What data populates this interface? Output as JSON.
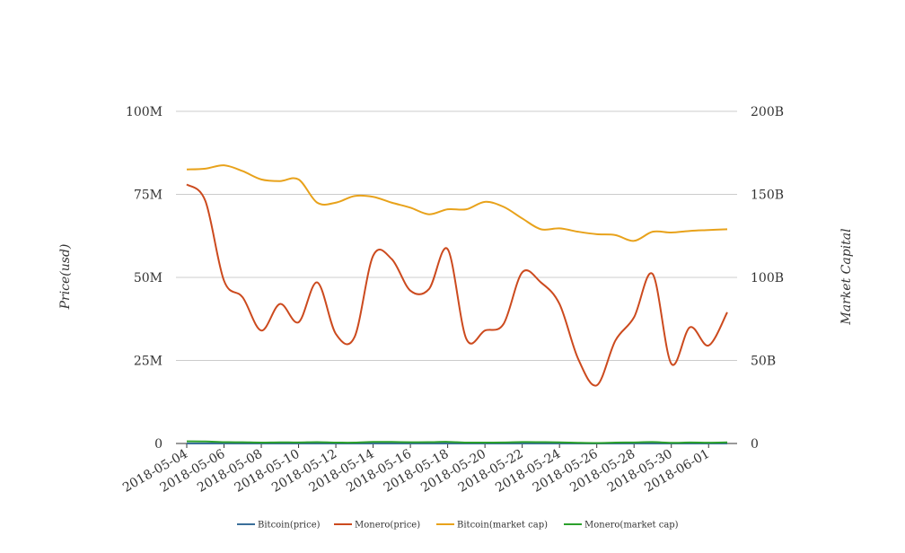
{
  "chart_data": {
    "type": "line",
    "title": "",
    "x": [
      "2018-05-04",
      "2018-05-05",
      "2018-05-06",
      "2018-05-07",
      "2018-05-08",
      "2018-05-09",
      "2018-05-10",
      "2018-05-11",
      "2018-05-12",
      "2018-05-13",
      "2018-05-14",
      "2018-05-15",
      "2018-05-16",
      "2018-05-17",
      "2018-05-18",
      "2018-05-19",
      "2018-05-20",
      "2018-05-21",
      "2018-05-22",
      "2018-05-23",
      "2018-05-24",
      "2018-05-25",
      "2018-05-26",
      "2018-05-27",
      "2018-05-28",
      "2018-05-29",
      "2018-05-30",
      "2018-05-31",
      "2018-06-01",
      "2018-06-02"
    ],
    "x_tick_labels": [
      "2018-05-04",
      "2018-05-06",
      "2018-05-08",
      "2018-05-10",
      "2018-05-12",
      "2018-05-14",
      "2018-05-16",
      "2018-05-18",
      "2018-05-20",
      "2018-05-22",
      "2018-05-24",
      "2018-05-26",
      "2018-05-28",
      "2018-05-30",
      "2018-06-01"
    ],
    "y_left": {
      "label": "Price(usd)",
      "ylim": [
        0,
        100000000
      ],
      "ticks": [
        0,
        25000000,
        50000000,
        75000000,
        100000000
      ],
      "tick_labels": [
        "0",
        "25M",
        "50M",
        "75M",
        "100M"
      ]
    },
    "y_right": {
      "label": "Market Capital",
      "ylim": [
        0,
        200000000000
      ],
      "ticks": [
        0,
        50000000000,
        100000000000,
        150000000000,
        200000000000
      ],
      "tick_labels": [
        "0",
        "50B",
        "100B",
        "150B",
        "200B"
      ]
    },
    "grid": true,
    "legend_position": "bottom",
    "series": [
      {
        "name": "Bitcoin(price)",
        "axis": "left",
        "color": "#3a6f9a",
        "values": [
          9700,
          9850,
          9650,
          9380,
          9200,
          9300,
          9030,
          8450,
          8500,
          8720,
          8680,
          8500,
          8360,
          8100,
          8250,
          8230,
          8530,
          8400,
          8000,
          7600,
          7500,
          7360,
          7350,
          7350,
          7100,
          7500,
          7400,
          7500,
          7540,
          7640
        ]
      },
      {
        "name": "Monero(price)",
        "axis": "left",
        "color": "#cc4a1e",
        "values": [
          78000000,
          73000000,
          49000000,
          44000000,
          34000000,
          42000000,
          36500000,
          48500000,
          33000000,
          32000000,
          56500000,
          55500000,
          46000000,
          46500000,
          58500000,
          31500000,
          34000000,
          36000000,
          51500000,
          48500000,
          42000000,
          25500000,
          17500000,
          31000000,
          38000000,
          51000000,
          24000000,
          35000000,
          29500000,
          39500000
        ]
      },
      {
        "name": "Bitcoin(market cap)",
        "axis": "right",
        "color": "#e8a21b",
        "values": [
          165000000000,
          165500000000,
          167500000000,
          164000000000,
          159000000000,
          158000000000,
          159000000000,
          145000000000,
          145000000000,
          149000000000,
          148500000000,
          145000000000,
          142000000000,
          138000000000,
          141000000000,
          141000000000,
          145500000000,
          142500000000,
          135500000000,
          129000000000,
          129500000000,
          127500000000,
          126000000000,
          125500000000,
          122000000000,
          127500000000,
          127000000000,
          128000000000,
          128500000000,
          129000000000
        ]
      },
      {
        "name": "Monero(market cap)",
        "axis": "right",
        "color": "#2ca02c",
        "values": [
          1300000000,
          1220000000,
          820000000,
          730000000,
          570000000,
          700000000,
          610000000,
          810000000,
          550000000,
          530000000,
          940000000,
          920000000,
          770000000,
          780000000,
          980000000,
          530000000,
          570000000,
          600000000,
          860000000,
          810000000,
          700000000,
          430000000,
          290000000,
          520000000,
          640000000,
          850000000,
          400000000,
          590000000,
          490000000,
          660000000
        ]
      }
    ]
  }
}
